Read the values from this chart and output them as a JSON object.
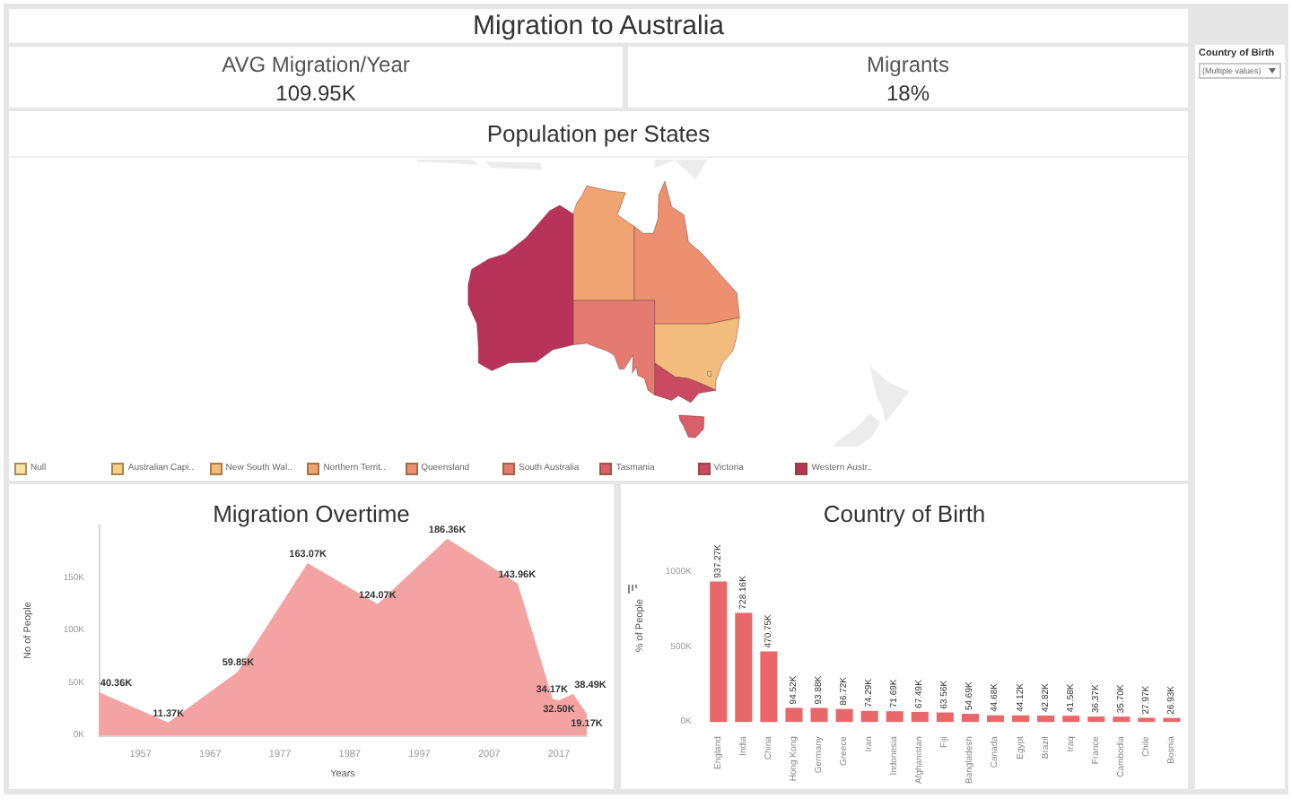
{
  "chart_data": [
    {
      "type": "other",
      "title": "Migration to Australia"
    },
    {
      "type": "other",
      "title": "AVG Migration/Year",
      "annotations": [
        "109.95K"
      ]
    },
    {
      "type": "other",
      "title": "Migrants",
      "annotations": [
        "18%"
      ]
    },
    {
      "type": "other",
      "title": "Country of Birth",
      "annotations": [
        "(Multiple values)"
      ]
    },
    {
      "type": "other",
      "title": "Population per States",
      "categories": [
        "Null",
        "Australian Capi..",
        "New South Wal..",
        "Northern Territ..",
        "Queensland",
        "South Australia",
        "Tasmania",
        "Victoria",
        "Western Austr.."
      ],
      "colors": [
        "#f7e2a6",
        "#f4cf84",
        "#f2bd7c",
        "#efa472",
        "#ec9070",
        "#e47a70",
        "#d9606a",
        "#c94a62",
        "#b8335a"
      ]
    },
    {
      "type": "area",
      "title": "Migration Overtime",
      "xlabel": "Years",
      "ylabel": "No of People",
      "x": [
        1951,
        1961,
        1971,
        1981,
        1991,
        2001,
        2011,
        2016,
        2017,
        2019,
        2021
      ],
      "values": [
        40360,
        11370,
        59850,
        163070,
        124070,
        186360,
        143960,
        34170,
        32500,
        38490,
        19170
      ],
      "value_labels": [
        "40.36K",
        "11.37K",
        "59.85K",
        "163.07K",
        "124.07K",
        "186.36K",
        "143.96K",
        "34.17K",
        "32.50K",
        "38.49K",
        "19.17K"
      ],
      "color": "#f4a3a3",
      "xlim": [
        1951,
        2021
      ],
      "ylim": [
        0,
        200000
      ],
      "xticks": [
        1957,
        1967,
        1977,
        1987,
        1997,
        2007,
        2017
      ],
      "yticks": [
        {
          "value": 0,
          "label": "0K"
        },
        {
          "value": 50000,
          "label": "50K"
        },
        {
          "value": 100000,
          "label": "100K"
        },
        {
          "value": 150000,
          "label": "150K"
        }
      ]
    },
    {
      "type": "bar",
      "title": "Country of Birth",
      "ylabel": "% of People",
      "categories": [
        "England",
        "India",
        "China",
        "Hong Kong",
        "Germany",
        "Greece",
        "Iran",
        "Indonesia",
        "Afghanistan",
        "Fiji",
        "Bangladesh",
        "Canada",
        "Egypt",
        "Brazil",
        "Iraq",
        "France",
        "Cambodia",
        "Chile",
        "Bosnia"
      ],
      "values": [
        937270,
        728160,
        470750,
        94520,
        93880,
        86720,
        74290,
        71690,
        67490,
        63560,
        54690,
        44680,
        44120,
        42820,
        41580,
        36370,
        35700,
        27970,
        26930
      ],
      "value_labels": [
        "937.27K",
        "728.16K",
        "470.75K",
        "94.52K",
        "93.88K",
        "86.72K",
        "74.29K",
        "71.69K",
        "67.49K",
        "63.56K",
        "54.69K",
        "44.68K",
        "44.12K",
        "42.82K",
        "41.58K",
        "36.37K",
        "35.70K",
        "27.97K",
        "26.93K"
      ],
      "color": "#e8686a",
      "ylim": [
        0,
        1000000
      ],
      "yticks": [
        {
          "value": 0,
          "label": "0K"
        },
        {
          "value": 500000,
          "label": "500K"
        },
        {
          "value": 1000000,
          "label": "1000K"
        }
      ]
    }
  ]
}
